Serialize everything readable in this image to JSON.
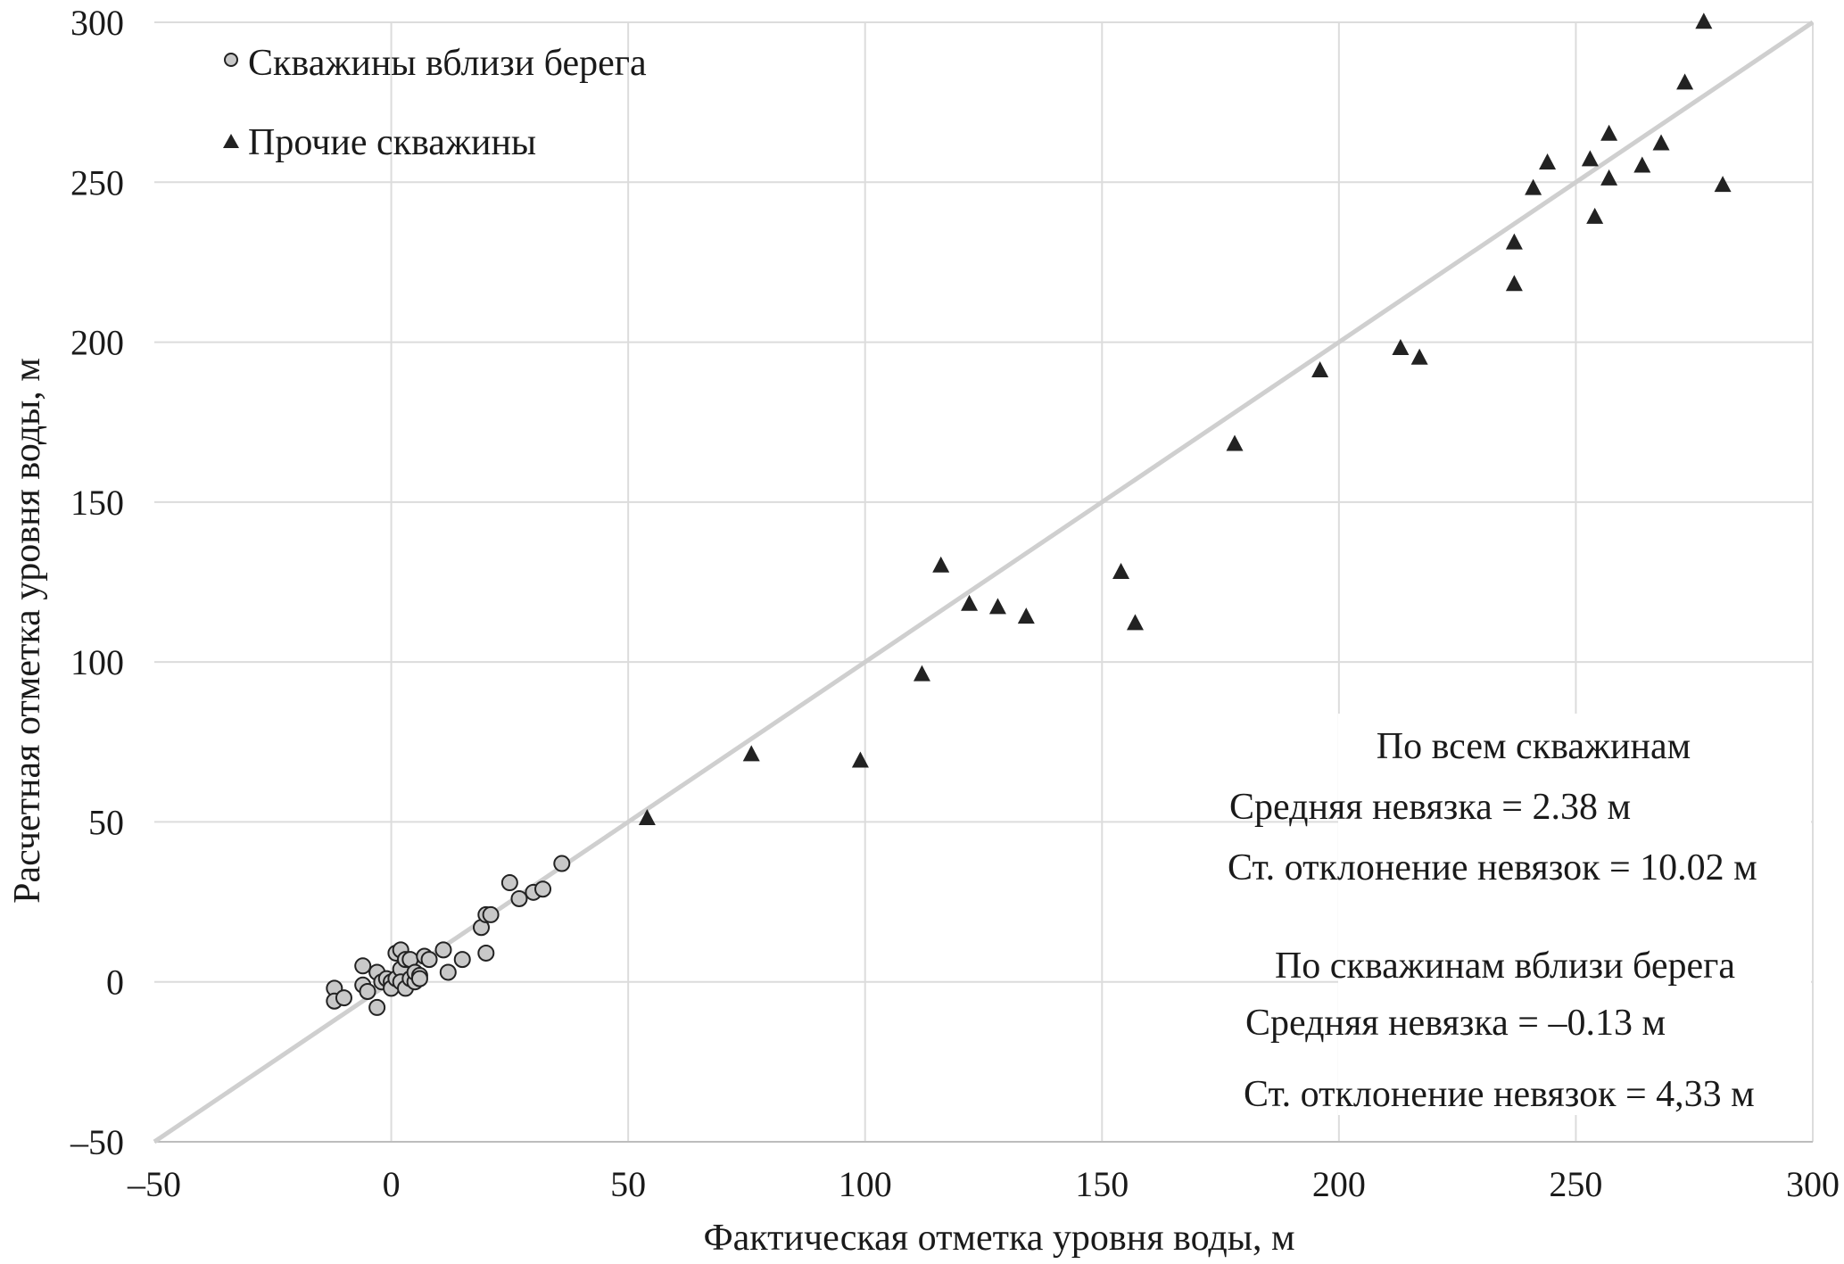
{
  "chart_data": {
    "type": "scatter",
    "xlabel": "Фактическая отметка уровня воды, м",
    "ylabel": "Расчетная отметка уровня воды, м",
    "xlim": [
      -50,
      300
    ],
    "ylim": [
      -50,
      300
    ],
    "x_ticks": [
      -50,
      0,
      50,
      100,
      150,
      200,
      250,
      300
    ],
    "y_ticks": [
      -50,
      0,
      50,
      100,
      150,
      200,
      250,
      300
    ],
    "x_tick_labels": [
      "–50",
      "0",
      "50",
      "100",
      "150",
      "200",
      "250",
      "300"
    ],
    "y_tick_labels": [
      "–50",
      "0",
      "50",
      "100",
      "150",
      "200",
      "250",
      "300"
    ],
    "grid": true,
    "legend_position": "top-left",
    "reference_line": {
      "type": "y=x",
      "color": "#cfcfcf"
    },
    "series": [
      {
        "name": "Скважины вблизи берега",
        "marker": "circle",
        "color": "#c8c8c8",
        "points": [
          [
            -12,
            -2
          ],
          [
            -12,
            -6
          ],
          [
            -10,
            -5
          ],
          [
            -6,
            5
          ],
          [
            -6,
            -1
          ],
          [
            -5,
            -3
          ],
          [
            -3,
            3
          ],
          [
            -3,
            -8
          ],
          [
            -2,
            0
          ],
          [
            -1,
            1
          ],
          [
            0,
            0
          ],
          [
            0,
            -2
          ],
          [
            1,
            1
          ],
          [
            1,
            9
          ],
          [
            2,
            4
          ],
          [
            2,
            10
          ],
          [
            2,
            0
          ],
          [
            3,
            -2
          ],
          [
            3,
            7
          ],
          [
            4,
            7
          ],
          [
            4,
            1
          ],
          [
            5,
            0
          ],
          [
            5,
            3
          ],
          [
            6,
            2
          ],
          [
            6,
            1
          ],
          [
            7,
            8
          ],
          [
            8,
            7
          ],
          [
            11,
            10
          ],
          [
            12,
            3
          ],
          [
            15,
            7
          ],
          [
            19,
            17
          ],
          [
            20,
            21
          ],
          [
            20,
            9
          ],
          [
            21,
            21
          ],
          [
            25,
            31
          ],
          [
            27,
            26
          ],
          [
            30,
            28
          ],
          [
            32,
            29
          ],
          [
            36,
            37
          ]
        ]
      },
      {
        "name": "Прочие скважины",
        "marker": "triangle",
        "color": "#222222",
        "points": [
          [
            54,
            51
          ],
          [
            76,
            71
          ],
          [
            99,
            69
          ],
          [
            112,
            96
          ],
          [
            116,
            130
          ],
          [
            122,
            118
          ],
          [
            128,
            117
          ],
          [
            134,
            114
          ],
          [
            154,
            128
          ],
          [
            157,
            112
          ],
          [
            178,
            168
          ],
          [
            196,
            191
          ],
          [
            213,
            198
          ],
          [
            217,
            195
          ],
          [
            237,
            231
          ],
          [
            237,
            218
          ],
          [
            241,
            248
          ],
          [
            244,
            256
          ],
          [
            253,
            257
          ],
          [
            254,
            239
          ],
          [
            257,
            251
          ],
          [
            257,
            265
          ],
          [
            264,
            255
          ],
          [
            268,
            262
          ],
          [
            273,
            281
          ],
          [
            277,
            300
          ],
          [
            281,
            249
          ]
        ]
      }
    ],
    "annotations": {
      "all_title": "По всем скважинам",
      "all_mean": "Средняя невязка = 2.38 м",
      "all_std": "Ст. отклонение невязок = 10.02 м",
      "near_title": "По скважинам вблизи берега",
      "near_mean": "Средняя невязка = –0.13 м",
      "near_std": "Ст. отклонение невязок = 4,33 м"
    }
  }
}
